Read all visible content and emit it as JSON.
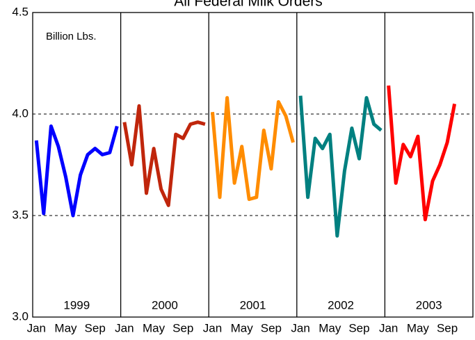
{
  "chart_data": {
    "type": "line",
    "title": "All Federal Milk Orders",
    "annotations": [
      "Billion Lbs."
    ],
    "year_labels": [
      "1999",
      "2000",
      "2001",
      "2002",
      "2003"
    ],
    "categories": [
      "Jan",
      null,
      null,
      null,
      "May",
      null,
      null,
      null,
      "Sep",
      null,
      null,
      null,
      "Jan",
      null,
      null,
      null,
      "May",
      null,
      null,
      null,
      "Sep",
      null,
      null,
      null,
      "Jan",
      null,
      null,
      null,
      "May",
      null,
      null,
      null,
      "Sep",
      null,
      null,
      null,
      "Jan",
      null,
      null,
      null,
      "May",
      null,
      null,
      null,
      "Sep",
      null,
      null,
      null,
      "Jan",
      null,
      null,
      null,
      "May",
      null,
      null,
      null,
      "Sep",
      null,
      null,
      null
    ],
    "series": [
      {
        "name": "1999",
        "color": "#0000ff",
        "values": [
          3.87,
          3.51,
          3.94,
          3.84,
          3.69,
          3.5,
          3.7,
          3.8,
          3.83,
          3.8,
          3.81,
          3.94,
          null,
          null,
          null,
          null,
          null,
          null,
          null,
          null,
          null,
          null,
          null,
          null,
          null,
          null,
          null,
          null,
          null,
          null,
          null,
          null,
          null,
          null,
          null,
          null,
          null,
          null,
          null,
          null,
          null,
          null,
          null,
          null,
          null,
          null,
          null,
          null,
          null,
          null,
          null,
          null,
          null,
          null,
          null,
          null,
          null,
          null,
          null,
          null
        ]
      },
      {
        "name": "2000",
        "color": "#c0260c",
        "values": [
          null,
          null,
          null,
          null,
          null,
          null,
          null,
          null,
          null,
          null,
          null,
          null,
          3.96,
          3.75,
          4.04,
          3.61,
          3.83,
          3.63,
          3.55,
          3.9,
          3.88,
          3.95,
          3.96,
          3.95,
          null,
          null,
          null,
          null,
          null,
          null,
          null,
          null,
          null,
          null,
          null,
          null,
          null,
          null,
          null,
          null,
          null,
          null,
          null,
          null,
          null,
          null,
          null,
          null,
          null,
          null,
          null,
          null,
          null,
          null,
          null,
          null,
          null,
          null,
          null,
          null
        ]
      },
      {
        "name": "2001",
        "color": "#ff8c00",
        "values": [
          null,
          null,
          null,
          null,
          null,
          null,
          null,
          null,
          null,
          null,
          null,
          null,
          null,
          null,
          null,
          null,
          null,
          null,
          null,
          null,
          null,
          null,
          null,
          null,
          4.01,
          3.59,
          4.08,
          3.66,
          3.84,
          3.58,
          3.59,
          3.92,
          3.73,
          4.06,
          3.99,
          3.86,
          null,
          null,
          null,
          null,
          null,
          null,
          null,
          null,
          null,
          null,
          null,
          null,
          null,
          null,
          null,
          null,
          null,
          null,
          null,
          null,
          null,
          null,
          null,
          null
        ]
      },
      {
        "name": "2002",
        "color": "#008080",
        "values": [
          null,
          null,
          null,
          null,
          null,
          null,
          null,
          null,
          null,
          null,
          null,
          null,
          null,
          null,
          null,
          null,
          null,
          null,
          null,
          null,
          null,
          null,
          null,
          null,
          null,
          null,
          null,
          null,
          null,
          null,
          null,
          null,
          null,
          null,
          null,
          null,
          4.09,
          3.59,
          3.88,
          3.83,
          3.9,
          3.4,
          3.72,
          3.93,
          3.78,
          4.08,
          3.95,
          3.92,
          null,
          null,
          null,
          null,
          null,
          null,
          null,
          null,
          null,
          null,
          null,
          null
        ]
      },
      {
        "name": "2003",
        "color": "#ff0000",
        "values": [
          null,
          null,
          null,
          null,
          null,
          null,
          null,
          null,
          null,
          null,
          null,
          null,
          null,
          null,
          null,
          null,
          null,
          null,
          null,
          null,
          null,
          null,
          null,
          null,
          null,
          null,
          null,
          null,
          null,
          null,
          null,
          null,
          null,
          null,
          null,
          null,
          null,
          null,
          null,
          null,
          null,
          null,
          null,
          null,
          null,
          null,
          null,
          null,
          4.14,
          3.66,
          3.85,
          3.79,
          3.89,
          3.48,
          3.67,
          3.75,
          3.86,
          4.05,
          null,
          null
        ]
      }
    ],
    "ylim": [
      3.0,
      4.5
    ],
    "yticks": [
      {
        "value": 3.0,
        "label": "3.0"
      },
      3.5,
      {
        "value": 4.0,
        "label": "4.0"
      },
      {
        "value": 4.5,
        "label": "4.5"
      }
    ],
    "grid": true
  }
}
